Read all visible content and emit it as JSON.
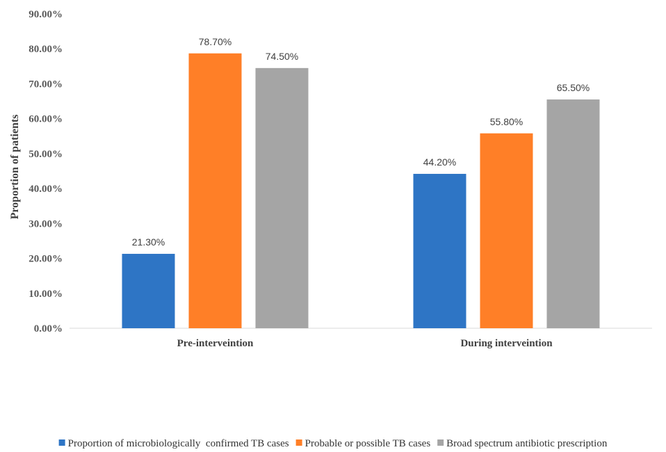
{
  "chart_data": {
    "type": "bar",
    "title": "",
    "xlabel": "",
    "ylabel": "Proportion of patients",
    "categories": [
      "Pre-interveintion",
      "During interveintion"
    ],
    "ylim": [
      0,
      90
    ],
    "yticks": [
      "0.00%",
      "10.00%",
      "20.00%",
      "30.00%",
      "40.00%",
      "50.00%",
      "60.00%",
      "70.00%",
      "80.00%",
      "90.00%"
    ],
    "grid": false,
    "legend_position": "bottom",
    "series": [
      {
        "name": "Proportion of microbiologically  confirmed TB cases",
        "color": "#2e75c5",
        "values": [
          21.3,
          44.2
        ],
        "labels": [
          "21.30%",
          "44.20%"
        ]
      },
      {
        "name": "Probable or possible TB cases",
        "color": "#ff7f27",
        "values": [
          78.7,
          55.8
        ],
        "labels": [
          "78.70%",
          "55.80%"
        ]
      },
      {
        "name": "Broad spectrum antibiotic prescription",
        "color": "#a5a5a5",
        "values": [
          74.5,
          65.5
        ],
        "labels": [
          "74.50%",
          "65.50%"
        ]
      }
    ]
  }
}
